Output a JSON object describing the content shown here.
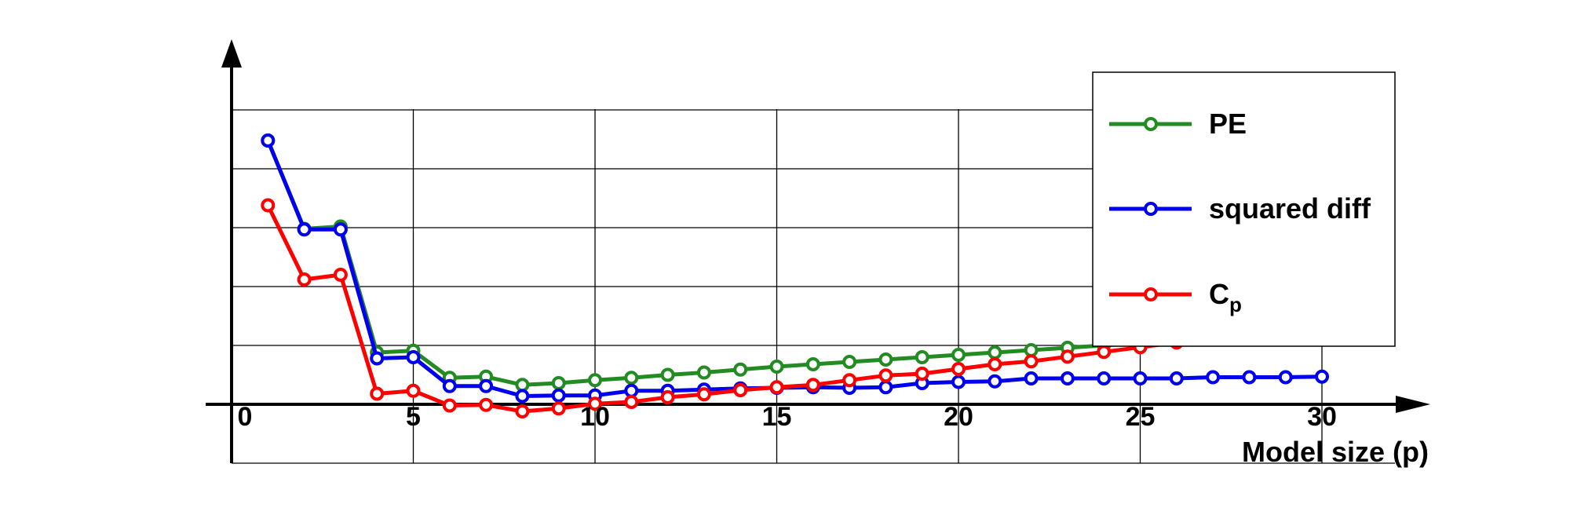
{
  "chart_data": {
    "type": "line",
    "title": "",
    "xlabel": "Model size (p)",
    "ylabel": "",
    "xlim": [
      0,
      33
    ],
    "ylim": [
      -1,
      5
    ],
    "xticks": [
      0,
      5,
      10,
      15,
      20,
      25,
      30
    ],
    "xtick_labels": [
      "0",
      "5",
      "10",
      "15",
      "20",
      "25",
      "30"
    ],
    "grid": true,
    "legend_position": "top-right",
    "series": [
      {
        "name": "PE",
        "color": "#228B22",
        "x": [
          1,
          2,
          3,
          4,
          5,
          6,
          7,
          8,
          9,
          10,
          11,
          12,
          13,
          14,
          15,
          16,
          17,
          18,
          19,
          20,
          21,
          22,
          23,
          24,
          25,
          26,
          27,
          28,
          29,
          30
        ],
        "y": [
          4.48,
          2.98,
          3.02,
          0.88,
          0.91,
          0.45,
          0.47,
          0.33,
          0.36,
          0.41,
          0.45,
          0.5,
          0.54,
          0.59,
          0.64,
          0.68,
          0.72,
          0.76,
          0.8,
          0.84,
          0.88,
          0.92,
          0.96,
          1.0,
          1.04,
          1.08,
          1.12,
          1.16,
          1.2,
          1.24
        ]
      },
      {
        "name": "squared diff",
        "color": "#0000EE",
        "x": [
          1,
          2,
          3,
          4,
          5,
          6,
          7,
          8,
          9,
          10,
          11,
          12,
          13,
          14,
          15,
          16,
          17,
          18,
          19,
          20,
          21,
          22,
          23,
          24,
          25,
          26,
          27,
          28,
          29,
          30
        ],
        "y": [
          4.48,
          2.97,
          2.97,
          0.78,
          0.8,
          0.31,
          0.31,
          0.14,
          0.15,
          0.15,
          0.23,
          0.23,
          0.25,
          0.27,
          0.28,
          0.29,
          0.28,
          0.29,
          0.36,
          0.38,
          0.39,
          0.44,
          0.44,
          0.44,
          0.44,
          0.44,
          0.46,
          0.46,
          0.46,
          0.47
        ]
      },
      {
        "name": "Cp",
        "name_main": "C",
        "name_sub": "p",
        "color": "#FF0000",
        "x": [
          1,
          2,
          3,
          4,
          5,
          6,
          7,
          8,
          9,
          10,
          11,
          12,
          13,
          14,
          15,
          16,
          17,
          18,
          19,
          20,
          21,
          22,
          23,
          24,
          25,
          26,
          27,
          28,
          29,
          30
        ],
        "y": [
          3.38,
          2.12,
          2.2,
          0.18,
          0.23,
          -0.02,
          -0.01,
          -0.12,
          -0.07,
          0.01,
          0.04,
          0.12,
          0.17,
          0.24,
          0.29,
          0.33,
          0.41,
          0.49,
          0.52,
          0.6,
          0.68,
          0.73,
          0.81,
          0.89,
          0.97,
          1.05,
          1.13,
          1.21,
          1.29,
          1.37
        ]
      }
    ]
  }
}
